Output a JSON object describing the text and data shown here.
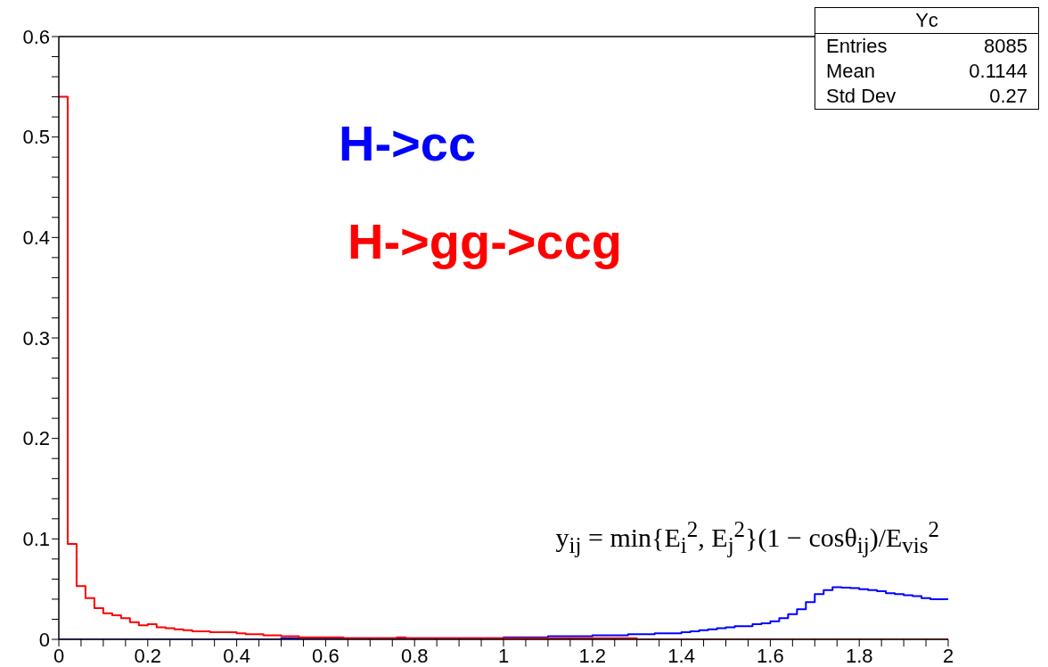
{
  "chart_data": {
    "type": "histogram",
    "bins": [
      0,
      0.02,
      0.04,
      0.06,
      0.08,
      0.1,
      0.12,
      0.14,
      0.16,
      0.18,
      0.2,
      0.22,
      0.24,
      0.26,
      0.28,
      0.3,
      0.32,
      0.34,
      0.36,
      0.38,
      0.4,
      0.42,
      0.44,
      0.46,
      0.48,
      0.5,
      0.52,
      0.54,
      0.56,
      0.58,
      0.6,
      0.62,
      0.64,
      0.66,
      0.68,
      0.7,
      0.72,
      0.74,
      0.76,
      0.78,
      0.8,
      0.82,
      0.84,
      0.86,
      0.88,
      0.9,
      0.92,
      0.94,
      0.96,
      0.98,
      1,
      1.02,
      1.04,
      1.06,
      1.08,
      1.1,
      1.12,
      1.14,
      1.16,
      1.18,
      1.2,
      1.22,
      1.24,
      1.26,
      1.28,
      1.3,
      1.32,
      1.34,
      1.36,
      1.38,
      1.4,
      1.42,
      1.44,
      1.46,
      1.48,
      1.5,
      1.52,
      1.54,
      1.56,
      1.58,
      1.6,
      1.62,
      1.64,
      1.66,
      1.68,
      1.7,
      1.72,
      1.74,
      1.76,
      1.78,
      1.8,
      1.82,
      1.84,
      1.86,
      1.88,
      1.9,
      1.92,
      1.94,
      1.96,
      1.98,
      2
    ],
    "series": [
      {
        "name": "H->cc",
        "color": "#0000ff",
        "values": [
          0,
          0,
          0,
          0,
          0,
          0,
          0,
          0,
          0,
          0,
          0,
          0,
          0,
          0,
          0,
          0,
          0,
          0,
          0,
          0,
          0,
          0,
          0,
          0,
          0,
          0.001,
          0.001,
          0.001,
          0.001,
          0.001,
          0.001,
          0.001,
          0.001,
          0.001,
          0.001,
          0.001,
          0.001,
          0.001,
          0.001,
          0.001,
          0.001,
          0.001,
          0.001,
          0.001,
          0.001,
          0.001,
          0.001,
          0.001,
          0.001,
          0.001,
          0.002,
          0.002,
          0.002,
          0.002,
          0.002,
          0.003,
          0.003,
          0.003,
          0.003,
          0.003,
          0.004,
          0.004,
          0.004,
          0.004,
          0.005,
          0.005,
          0.005,
          0.006,
          0.006,
          0.006,
          0.007,
          0.008,
          0.009,
          0.01,
          0.011,
          0.012,
          0.013,
          0.013,
          0.015,
          0.016,
          0.018,
          0.021,
          0.025,
          0.03,
          0.037,
          0.045,
          0.049,
          0.052,
          0.0515,
          0.051,
          0.05,
          0.049,
          0.048,
          0.046,
          0.045,
          0.044,
          0.043,
          0.041,
          0.04,
          0.04
        ]
      },
      {
        "name": "H->gg->ccg",
        "color": "#ff0000",
        "values": [
          0.54,
          0.095,
          0.053,
          0.041,
          0.031,
          0.026,
          0.024,
          0.021,
          0.017,
          0.014,
          0.015,
          0.012,
          0.011,
          0.01,
          0.009,
          0.008,
          0.008,
          0.007,
          0.007,
          0.007,
          0.006,
          0.005,
          0.005,
          0.004,
          0.004,
          0.003,
          0.003,
          0.002,
          0.002,
          0.002,
          0.002,
          0.002,
          0.001,
          0.001,
          0.001,
          0.001,
          0.001,
          0.001,
          0.002,
          0.001,
          0.001,
          0.001,
          0.001,
          0.001,
          0.001,
          0.001,
          0.001,
          0.001,
          0.001,
          0.001,
          0.001,
          0.001,
          0.001,
          0.001,
          0.001,
          0.001,
          0.001,
          0.001,
          0.001,
          0.001,
          0.001,
          0.001,
          0.001,
          0.001,
          0.001,
          0,
          0,
          0,
          0,
          0,
          0,
          0,
          0,
          0,
          0,
          0,
          0,
          0,
          0,
          0,
          0,
          0,
          0,
          0,
          0,
          0,
          0,
          0,
          0,
          0,
          0,
          0,
          0,
          0,
          0,
          0,
          0,
          0,
          0,
          0
        ]
      }
    ],
    "xlim": [
      0,
      2
    ],
    "xticks": [
      0,
      {
        "value": 0.05,
        "label": null
      },
      {
        "value": 0.1,
        "label": null
      },
      {
        "value": 0.15,
        "label": null
      },
      0.2,
      {
        "value": 0.25,
        "label": null
      },
      {
        "value": 0.3,
        "label": null
      },
      {
        "value": 0.35,
        "label": null
      },
      0.4,
      {
        "value": 0.45,
        "label": null
      },
      {
        "value": 0.5,
        "label": null
      },
      {
        "value": 0.55,
        "label": null
      },
      0.6,
      {
        "value": 0.65,
        "label": null
      },
      {
        "value": 0.7,
        "label": null
      },
      {
        "value": 0.75,
        "label": null
      },
      0.8,
      {
        "value": 0.85,
        "label": null
      },
      {
        "value": 0.9,
        "label": null
      },
      {
        "value": 0.95,
        "label": null
      },
      1,
      {
        "value": 1.05,
        "label": null
      },
      {
        "value": 1.1,
        "label": null
      },
      {
        "value": 1.15,
        "label": null
      },
      1.2,
      {
        "value": 1.25,
        "label": null
      },
      {
        "value": 1.3,
        "label": null
      },
      {
        "value": 1.35,
        "label": null
      },
      1.4,
      {
        "value": 1.45,
        "label": null
      },
      {
        "value": 1.5,
        "label": null
      },
      {
        "value": 1.55,
        "label": null
      },
      1.6,
      {
        "value": 1.65,
        "label": null
      },
      {
        "value": 1.7,
        "label": null
      },
      {
        "value": 1.75,
        "label": null
      },
      1.8,
      {
        "value": 1.85,
        "label": null
      },
      {
        "value": 1.9,
        "label": null
      },
      {
        "value": 1.95,
        "label": null
      },
      2
    ],
    "ylim": [
      0,
      0.6
    ],
    "yticks": [
      0,
      {
        "value": 0.02,
        "label": null
      },
      {
        "value": 0.04,
        "label": null
      },
      {
        "value": 0.06,
        "label": null
      },
      {
        "value": 0.08,
        "label": null
      },
      0.1,
      {
        "value": 0.12,
        "label": null
      },
      {
        "value": 0.14,
        "label": null
      },
      {
        "value": 0.16,
        "label": null
      },
      {
        "value": 0.18,
        "label": null
      },
      0.2,
      {
        "value": 0.22,
        "label": null
      },
      {
        "value": 0.24,
        "label": null
      },
      {
        "value": 0.26,
        "label": null
      },
      {
        "value": 0.28,
        "label": null
      },
      0.3,
      {
        "value": 0.32,
        "label": null
      },
      {
        "value": 0.34,
        "label": null
      },
      {
        "value": 0.36,
        "label": null
      },
      {
        "value": 0.38,
        "label": null
      },
      0.4,
      {
        "value": 0.42,
        "label": null
      },
      {
        "value": 0.44,
        "label": null
      },
      {
        "value": 0.46,
        "label": null
      },
      {
        "value": 0.48,
        "label": null
      },
      0.5,
      {
        "value": 0.52,
        "label": null
      },
      {
        "value": 0.54,
        "label": null
      },
      {
        "value": 0.56,
        "label": null
      },
      {
        "value": 0.58,
        "label": null
      },
      0.6
    ],
    "annotations": [
      "Yc",
      "Entries",
      "8085",
      "Mean",
      "0.1144",
      "Std Dev",
      "0.27",
      "y$_{ij}$ = min{E$_{i}$$^{2}$, E$_{j}$$^{2}$}(1 − cosθ$_{ij}$)/E$_{vis}$$^{2}$"
    ]
  }
}
